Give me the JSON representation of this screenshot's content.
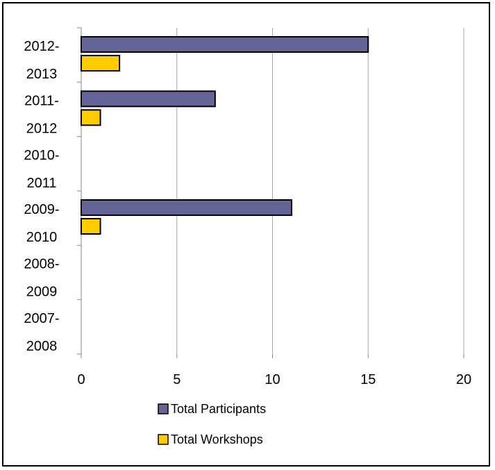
{
  "chart_data": {
    "type": "bar",
    "orientation": "horizontal",
    "categories": [
      [
        "2012-",
        "2013"
      ],
      [
        "2011-",
        "2012"
      ],
      [
        "2010-",
        "2011"
      ],
      [
        "2009-",
        "2010"
      ],
      [
        "2008-",
        "2009"
      ],
      [
        "2007-",
        "2008"
      ]
    ],
    "series": [
      {
        "name": "Total Participants",
        "color": "#646496",
        "values": [
          15,
          7,
          0,
          11,
          0,
          0
        ]
      },
      {
        "name": "Total Workshops",
        "color": "#FFCC00",
        "values": [
          2,
          1,
          0,
          1,
          0,
          0
        ]
      }
    ],
    "x_ticks": [
      "0",
      "5",
      "10",
      "15",
      "20"
    ],
    "xlim": [
      0,
      20
    ],
    "grid": "vertical",
    "legend_position": "bottom",
    "title": "",
    "xlabel": "",
    "ylabel": ""
  }
}
